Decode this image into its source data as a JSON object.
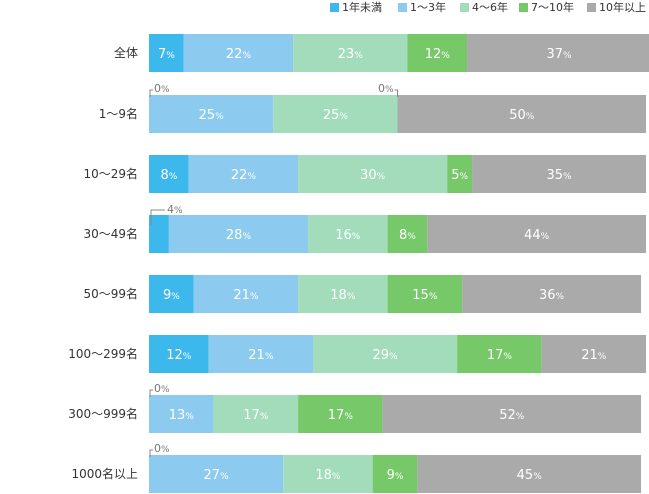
{
  "chart_data": {
    "type": "bar",
    "orientation": "horizontal",
    "stacked": true,
    "percent": true,
    "legend_position": "top-right",
    "unit": "%",
    "categories": [
      "全体",
      "1〜9名",
      "10〜29名",
      "30〜49名",
      "50〜99名",
      "100〜299名",
      "300〜999名",
      "1000名以上"
    ],
    "series": [
      {
        "name": "1年未満",
        "color": "#3db8ec",
        "values": [
          7,
          0,
          8,
          4,
          9,
          12,
          0,
          0
        ]
      },
      {
        "name": "1〜3年",
        "color": "#8ccbef",
        "values": [
          22,
          25,
          22,
          28,
          21,
          21,
          13,
          27
        ]
      },
      {
        "name": "4〜6年",
        "color": "#a2dcbb",
        "values": [
          23,
          25,
          30,
          16,
          18,
          29,
          17,
          18
        ]
      },
      {
        "name": "7〜10年",
        "color": "#76c868",
        "values": [
          12,
          0,
          5,
          8,
          15,
          17,
          17,
          9
        ]
      },
      {
        "name": "10年以上",
        "color": "#aaaaaa",
        "values": [
          37,
          50,
          35,
          44,
          36,
          21,
          52,
          45
        ]
      }
    ]
  }
}
